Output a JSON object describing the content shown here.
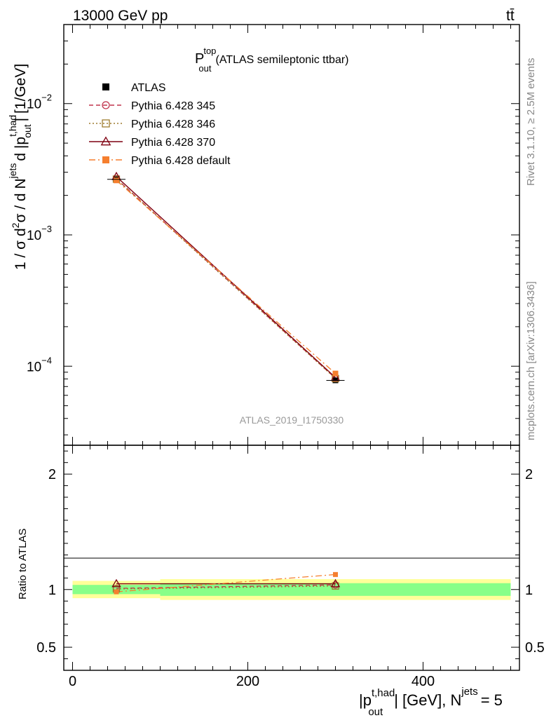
{
  "header": {
    "left": "13000 GeV pp",
    "right": "tt̄"
  },
  "side_labels": {
    "rivet": "Rivet 3.1.10, ≥ 2.5M events",
    "mcplots": "mcplots.cern.ch [arXiv:1306.3436]"
  },
  "chart_data": [
    {
      "type": "line",
      "title": "P_out^top (ATLAS semileptonic ttbar)",
      "title_main": "P",
      "title_sub": "out",
      "title_sup": "top",
      "title_rest": "(ATLAS semileptonic ttbar)",
      "watermark": "ATLAS_2019_I1750330",
      "ylabel": "1 / σ d²σ / d N^jets d |p_out^t,had| [1/GeV]",
      "yscale": "log",
      "ylim": [
        2.5e-05,
        0.04
      ],
      "xlim": [
        -10,
        510
      ],
      "y_ticks": [
        {
          "value": 0.0001,
          "base": "10",
          "exp": "−4"
        },
        {
          "value": 0.001,
          "base": "10",
          "exp": "−3"
        },
        {
          "value": 0.01,
          "base": "10",
          "exp": "−2"
        }
      ],
      "legend_position": "top-left",
      "series": [
        {
          "name": "ATLAS",
          "color": "#000000",
          "marker": "square-filled",
          "line": "none",
          "x": [
            50,
            300
          ],
          "y": [
            0.00265,
            7.8e-05
          ]
        },
        {
          "name": "Pythia 6.428 345",
          "color": "#c0334d",
          "marker": "circle-open",
          "line": "dashed",
          "x": [
            50,
            300
          ],
          "y": [
            0.00268,
            8.1e-05
          ]
        },
        {
          "name": "Pythia 6.428 346",
          "color": "#9e7c2e",
          "marker": "square-open",
          "line": "dotted",
          "x": [
            50,
            300
          ],
          "y": [
            0.00266,
            8.05e-05
          ]
        },
        {
          "name": "Pythia 6.428 370",
          "color": "#7f0010",
          "marker": "triangle-open",
          "line": "solid",
          "x": [
            50,
            300
          ],
          "y": [
            0.00278,
            8.2e-05
          ]
        },
        {
          "name": "Pythia 6.428 default",
          "color": "#f57f2f",
          "marker": "square-filled",
          "line": "dashdot",
          "x": [
            50,
            300
          ],
          "y": [
            0.0026,
            8.8e-05
          ]
        }
      ]
    },
    {
      "type": "line",
      "ylabel": "Ratio to ATLAS",
      "xlabel": "|p_out^t,had| [GeV], N^jets = 5",
      "xlim": [
        -10,
        510
      ],
      "ylim": [
        0.3,
        2.25
      ],
      "x_ticks": [
        0,
        200,
        400
      ],
      "y_ticks": [
        0.5,
        1,
        2
      ],
      "y_tick_labels": [
        "0.5",
        "1",
        "2"
      ],
      "bands": [
        {
          "x": [
            0,
            100
          ],
          "inner": [
            0.96,
            1.04
          ],
          "outer": [
            0.925,
            1.075
          ]
        },
        {
          "x": [
            100,
            500
          ],
          "inner": [
            0.945,
            1.055
          ],
          "outer": [
            0.91,
            1.09
          ]
        }
      ],
      "series": [
        {
          "name": "Pythia 6.428 345",
          "x": [
            50,
            300
          ],
          "y": [
            1.01,
            1.04
          ]
        },
        {
          "name": "Pythia 6.428 346",
          "x": [
            50,
            300
          ],
          "y": [
            1.005,
            1.03
          ]
        },
        {
          "name": "Pythia 6.428 370",
          "x": [
            50,
            300
          ],
          "y": [
            1.05,
            1.05
          ]
        },
        {
          "name": "Pythia 6.428 default",
          "x": [
            50,
            300
          ],
          "y": [
            0.98,
            1.13
          ]
        }
      ]
    }
  ],
  "axes": {
    "x_title_main": "|p",
    "x_title_sup": "t,had",
    "x_title_sub": "out",
    "x_title_mid": "| [GeV], N",
    "x_title_sup2": "jets",
    "x_title_end": "= 5",
    "y_title_a": "1 / σ d",
    "y_title_sup1": "2",
    "y_title_b": "σ / d N",
    "y_title_sup2": "jets",
    "y_title_c": "d |p",
    "y_title_sup3": "t,had",
    "y_title_sub3": "out",
    "y_title_d": "| [1/GeV]"
  },
  "colors": {
    "band_inner": "#88ff88",
    "band_outer": "#ffff99",
    "frame": "#000000"
  }
}
